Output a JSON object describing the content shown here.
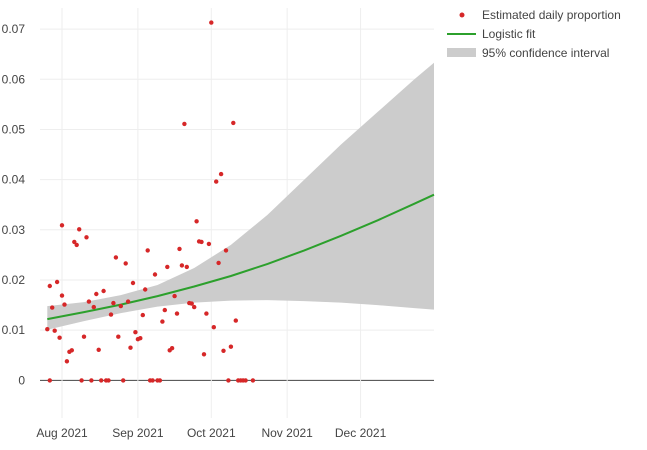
{
  "chart_data": {
    "type": "scatter",
    "title": "",
    "xlabel": "",
    "ylabel": "",
    "x_axis": {
      "type": "date",
      "range": [
        "2021-07-23",
        "2021-12-31"
      ],
      "tick_dates": [
        "2021-08-01",
        "2021-09-01",
        "2021-10-01",
        "2021-11-01",
        "2021-12-01"
      ],
      "tick_labels": [
        "Aug 2021",
        "Sep 2021",
        "Oct 2021",
        "Nov 2021",
        "Dec 2021"
      ]
    },
    "y_axis": {
      "range": [
        -0.0075,
        0.0742
      ],
      "tick_values": [
        0,
        0.01,
        0.02,
        0.03,
        0.04,
        0.05,
        0.06,
        0.07
      ],
      "tick_labels": [
        "0",
        "0.01",
        "0.02",
        "0.03",
        "0.04",
        "0.05",
        "0.06",
        "0.07"
      ]
    },
    "grid": true,
    "legend": {
      "placement": "top-right",
      "entries": [
        "Estimated daily proportion",
        "Logistic fit",
        "95% confidence interval"
      ]
    },
    "colors": {
      "points": "#d62728",
      "fit": "#2ca02c",
      "ci": "#cccccc",
      "grid": "#eeeeee",
      "zero_line": "#444444"
    },
    "series": [
      {
        "name": "Estimated daily proportion",
        "type": "scatter",
        "points": [
          [
            "2021-07-26",
            0.0102
          ],
          [
            "2021-07-27",
            0.0188
          ],
          [
            "2021-07-27",
            0.0
          ],
          [
            "2021-07-28",
            0.0145
          ],
          [
            "2021-07-29",
            0.0099
          ],
          [
            "2021-07-30",
            0.0196
          ],
          [
            "2021-07-31",
            0.0085
          ],
          [
            "2021-08-01",
            0.0309
          ],
          [
            "2021-08-01",
            0.0169
          ],
          [
            "2021-08-02",
            0.0151
          ],
          [
            "2021-08-03",
            0.0038
          ],
          [
            "2021-08-04",
            0.0057
          ],
          [
            "2021-08-05",
            0.006
          ],
          [
            "2021-08-06",
            0.0276
          ],
          [
            "2021-08-07",
            0.027
          ],
          [
            "2021-08-08",
            0.0301
          ],
          [
            "2021-08-09",
            0.0
          ],
          [
            "2021-08-10",
            0.0087
          ],
          [
            "2021-08-11",
            0.0285
          ],
          [
            "2021-08-12",
            0.0157
          ],
          [
            "2021-08-13",
            0.0
          ],
          [
            "2021-08-14",
            0.0146
          ],
          [
            "2021-08-15",
            0.0172
          ],
          [
            "2021-08-16",
            0.0061
          ],
          [
            "2021-08-17",
            0.0
          ],
          [
            "2021-08-18",
            0.0178
          ],
          [
            "2021-08-19",
            0.0
          ],
          [
            "2021-08-20",
            0.0
          ],
          [
            "2021-08-21",
            0.0131
          ],
          [
            "2021-08-22",
            0.0154
          ],
          [
            "2021-08-23",
            0.0245
          ],
          [
            "2021-08-24",
            0.0087
          ],
          [
            "2021-08-25",
            0.0148
          ],
          [
            "2021-08-26",
            0.0
          ],
          [
            "2021-08-27",
            0.0233
          ],
          [
            "2021-08-28",
            0.0157
          ],
          [
            "2021-08-29",
            0.0065
          ],
          [
            "2021-08-30",
            0.0194
          ],
          [
            "2021-08-31",
            0.0096
          ],
          [
            "2021-09-01",
            0.0082
          ],
          [
            "2021-09-02",
            0.0084
          ],
          [
            "2021-09-03",
            0.013
          ],
          [
            "2021-09-04",
            0.0181
          ],
          [
            "2021-09-05",
            0.0259
          ],
          [
            "2021-09-06",
            0.0
          ],
          [
            "2021-09-07",
            0.0
          ],
          [
            "2021-09-08",
            0.0211
          ],
          [
            "2021-09-09",
            0.0
          ],
          [
            "2021-09-10",
            0.0
          ],
          [
            "2021-09-11",
            0.0117
          ],
          [
            "2021-09-12",
            0.014
          ],
          [
            "2021-09-13",
            0.0226
          ],
          [
            "2021-09-14",
            0.006
          ],
          [
            "2021-09-15",
            0.0064
          ],
          [
            "2021-09-16",
            0.0168
          ],
          [
            "2021-09-17",
            0.0133
          ],
          [
            "2021-09-18",
            0.0262
          ],
          [
            "2021-09-19",
            0.0229
          ],
          [
            "2021-09-20",
            0.0511
          ],
          [
            "2021-09-21",
            0.0226
          ],
          [
            "2021-09-22",
            0.0154
          ],
          [
            "2021-09-23",
            0.0153
          ],
          [
            "2021-09-24",
            0.0146
          ],
          [
            "2021-09-25",
            0.0317
          ],
          [
            "2021-09-26",
            0.0277
          ],
          [
            "2021-09-27",
            0.0276
          ],
          [
            "2021-09-28",
            0.0052
          ],
          [
            "2021-09-29",
            0.0133
          ],
          [
            "2021-09-30",
            0.0272
          ],
          [
            "2021-10-01",
            0.0713
          ],
          [
            "2021-10-02",
            0.0106
          ],
          [
            "2021-10-03",
            0.0396
          ],
          [
            "2021-10-04",
            0.0234
          ],
          [
            "2021-10-05",
            0.0411
          ],
          [
            "2021-10-06",
            0.0059
          ],
          [
            "2021-10-07",
            0.0259
          ],
          [
            "2021-10-08",
            0.0
          ],
          [
            "2021-10-09",
            0.0067
          ],
          [
            "2021-10-10",
            0.0513
          ],
          [
            "2021-10-11",
            0.0119
          ],
          [
            "2021-10-12",
            0.0
          ],
          [
            "2021-10-13",
            0.0
          ],
          [
            "2021-10-14",
            0.0
          ],
          [
            "2021-10-15",
            0.0
          ],
          [
            "2021-10-18",
            0.0
          ]
        ]
      },
      {
        "name": "Logistic fit",
        "type": "line",
        "points": [
          [
            "2021-07-26",
            0.0122
          ],
          [
            "2021-08-10",
            0.0136
          ],
          [
            "2021-08-25",
            0.0151
          ],
          [
            "2021-09-09",
            0.0168
          ],
          [
            "2021-09-24",
            0.0187
          ],
          [
            "2021-10-09",
            0.0208
          ],
          [
            "2021-10-24",
            0.0232
          ],
          [
            "2021-11-08",
            0.0259
          ],
          [
            "2021-11-23",
            0.0288
          ],
          [
            "2021-12-08",
            0.0319
          ],
          [
            "2021-12-23",
            0.0352
          ],
          [
            "2021-12-31",
            0.037
          ]
        ]
      },
      {
        "name": "95% confidence interval",
        "type": "band",
        "points": [
          [
            "2021-07-26",
            0.0101,
            0.0148
          ],
          [
            "2021-08-10",
            0.0118,
            0.0156
          ],
          [
            "2021-08-25",
            0.0134,
            0.017
          ],
          [
            "2021-09-09",
            0.0147,
            0.019
          ],
          [
            "2021-09-24",
            0.0155,
            0.0224
          ],
          [
            "2021-10-09",
            0.0159,
            0.027
          ],
          [
            "2021-10-24",
            0.016,
            0.033
          ],
          [
            "2021-11-08",
            0.0158,
            0.04
          ],
          [
            "2021-11-23",
            0.0155,
            0.047
          ],
          [
            "2021-12-08",
            0.015,
            0.0535
          ],
          [
            "2021-12-23",
            0.0144,
            0.06
          ],
          [
            "2021-12-31",
            0.0141,
            0.0633
          ]
        ]
      }
    ]
  }
}
